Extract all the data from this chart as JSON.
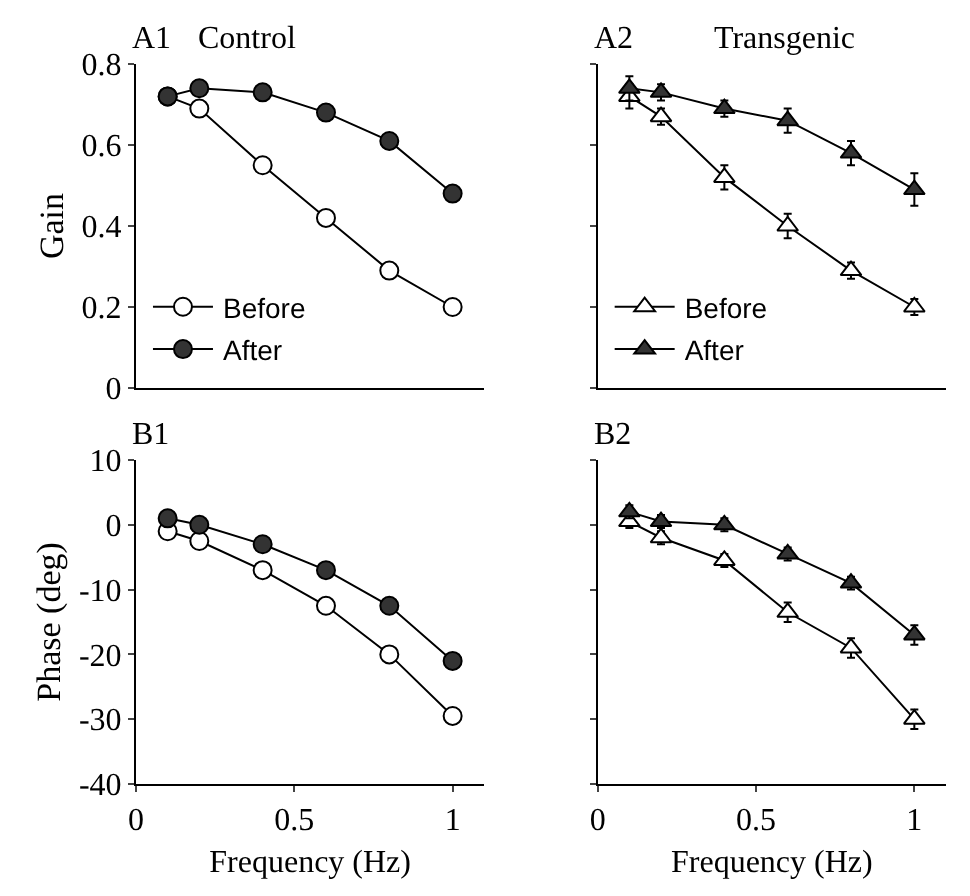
{
  "chart_data": [
    {
      "type": "line",
      "title": "A1",
      "subtitle": "Control",
      "ylabel": "Gain",
      "x": [
        0.1,
        0.2,
        0.4,
        0.6,
        0.8,
        1.0
      ],
      "xlim": [
        0,
        1.1
      ],
      "ylim": [
        0,
        0.8
      ],
      "yticks": [
        0,
        0.2,
        0.4,
        0.6,
        0.8
      ],
      "tick_labels": "y",
      "marker": "circle",
      "legend": "bottom left",
      "series": [
        {
          "name": "Before",
          "color": "#ffffff",
          "values": [
            0.72,
            0.69,
            0.55,
            0.42,
            0.29,
            0.2
          ]
        },
        {
          "name": "After",
          "color": "#333333",
          "values": [
            0.72,
            0.74,
            0.73,
            0.68,
            0.61,
            0.48
          ]
        }
      ]
    },
    {
      "type": "line",
      "title": "A2",
      "subtitle": "Transgenic",
      "x": [
        0.1,
        0.2,
        0.4,
        0.6,
        0.8,
        1.0
      ],
      "xlim": [
        0,
        1.1
      ],
      "ylim": [
        0,
        0.8
      ],
      "yticks": [
        0,
        0.2,
        0.4,
        0.6,
        0.8
      ],
      "tick_labels": false,
      "marker": "triangle",
      "legend": "bottom left",
      "series": [
        {
          "name": "Before",
          "color": "#ffffff",
          "values": [
            0.72,
            0.67,
            0.52,
            0.4,
            0.29,
            0.2
          ],
          "errors": [
            0.03,
            0.02,
            0.03,
            0.03,
            0.02,
            0.02
          ]
        },
        {
          "name": "After",
          "color": "#333333",
          "values": [
            0.74,
            0.73,
            0.69,
            0.66,
            0.58,
            0.49
          ],
          "errors": [
            0.03,
            0.02,
            0.02,
            0.03,
            0.03,
            0.04
          ]
        }
      ]
    },
    {
      "type": "line",
      "title": "B1",
      "xlabel": "Frequency (Hz)",
      "ylabel": "Phase (deg)",
      "x": [
        0.1,
        0.2,
        0.4,
        0.6,
        0.8,
        1.0
      ],
      "xlim": [
        0,
        1.1
      ],
      "xticks": [
        0,
        {
          "value": 0.5,
          "label": "0.5"
        },
        1
      ],
      "ylim": [
        -40,
        10
      ],
      "yticks": [
        -40,
        -30,
        -20,
        -10,
        0,
        10
      ],
      "marker": "circle",
      "series": [
        {
          "color": "#ffffff",
          "values": [
            -1,
            -2.5,
            -7,
            -12.5,
            -20,
            -29.5
          ]
        },
        {
          "color": "#333333",
          "values": [
            1,
            0,
            -3,
            -7,
            -12.5,
            -21
          ]
        }
      ]
    },
    {
      "type": "line",
      "title": "B2",
      "xlabel": "Frequency (Hz)",
      "x": [
        0.1,
        0.2,
        0.4,
        0.6,
        0.8,
        1.0
      ],
      "xlim": [
        0,
        1.1
      ],
      "xticks": [
        0,
        {
          "value": 0.5,
          "label": "0.5"
        },
        1
      ],
      "ylim": [
        -40,
        10
      ],
      "yticks": [
        -40,
        -30,
        -20,
        -10,
        0,
        10
      ],
      "tick_labels": "x",
      "marker": "triangle",
      "series": [
        {
          "color": "#ffffff",
          "values": [
            0.5,
            -2,
            -5.5,
            -13.5,
            -19,
            -30
          ],
          "errors": [
            1,
            1,
            1,
            1.5,
            1.5,
            1.5
          ]
        },
        {
          "color": "#333333",
          "values": [
            2,
            0.5,
            0,
            -4.5,
            -9,
            -17
          ],
          "errors": [
            1,
            1,
            1,
            1,
            1,
            1.5
          ]
        }
      ]
    }
  ]
}
